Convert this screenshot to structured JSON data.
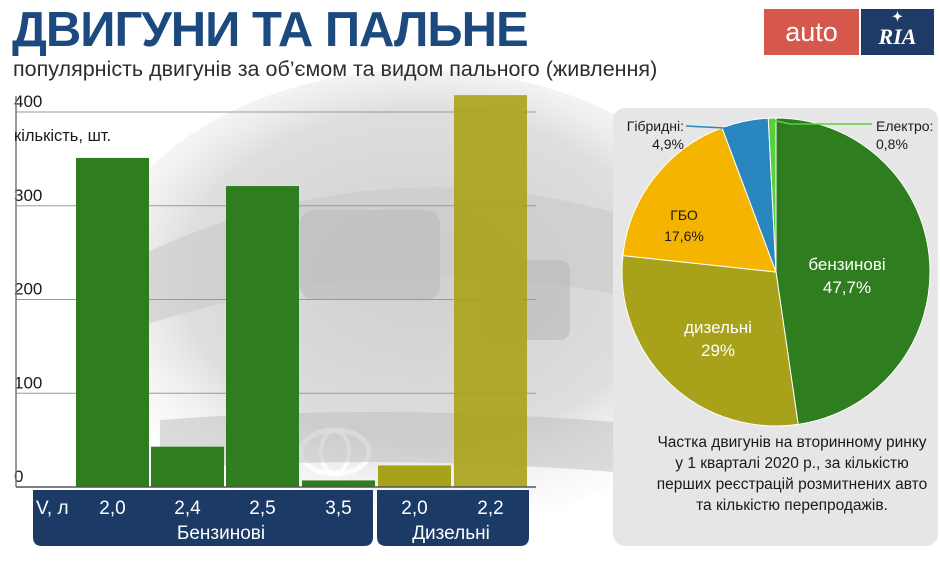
{
  "title": "ДВИГУНИ ТА ПАЛЬНЕ",
  "subtitle": "популярність двигунів за об’ємом та видом пального (живлення)",
  "logo": {
    "auto": "auto",
    "ria": "RIA"
  },
  "note": "Частка двигунів на вторинному ринку у 1 кварталі 2020 р., за кількістю перших реєстрацій розмитнених авто та кількістю перепродажів.",
  "colors": {
    "petrol": "#2e7d1e",
    "diesel": "#a8a21a",
    "lpg": "#f5b400",
    "hybrid": "#2a86bf",
    "electric": "#58d23c",
    "axis_band": "#1c3a66",
    "title": "#1c4a7e"
  },
  "chart_data": [
    {
      "type": "bar",
      "ylabel": "кількість, шт.",
      "xlabel": "V, л",
      "ylim": [
        0,
        420
      ],
      "yticks": [
        0,
        100,
        200,
        300,
        400
      ],
      "grid": true,
      "categories": [
        "2,0",
        "2,4",
        "2,5",
        "3,5",
        "2,0",
        "2,2"
      ],
      "values": [
        351,
        43,
        321,
        7,
        23,
        418
      ],
      "groups": [
        {
          "label": "Бензинові",
          "categories": [
            "2,0",
            "2,4",
            "2,5",
            "3,5"
          ]
        },
        {
          "label": "Дизельні",
          "categories": [
            "2,0",
            "2,2"
          ]
        }
      ]
    },
    {
      "type": "pie",
      "slices": [
        {
          "label": "бензинові",
          "value_label": "47,7%",
          "value": 47.7
        },
        {
          "label": "дизельні",
          "value_label": "29%",
          "value": 29.0
        },
        {
          "label": "ГБО",
          "value_label": "17,6%",
          "value": 17.6
        },
        {
          "label": "Гібридні:",
          "value_label": "4,9%",
          "value": 4.9
        },
        {
          "label": "Електро:",
          "value_label": "0,8%",
          "value": 0.8
        }
      ]
    }
  ]
}
